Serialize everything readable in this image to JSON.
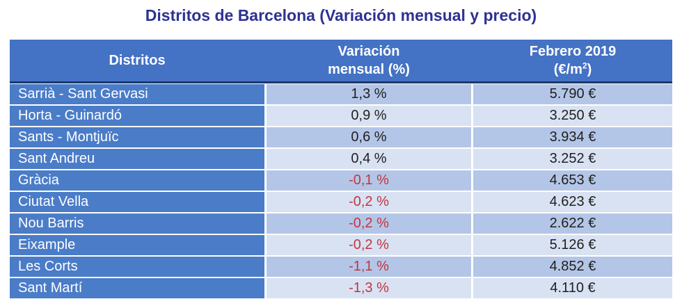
{
  "title": "Distritos de Barcelona (Variación mensual y precio)",
  "table": {
    "headers": {
      "district": "Distritos",
      "variation_line1": "Variación",
      "variation_line2": "mensual (%)",
      "price_line1": "Febrero 2019",
      "price_paren_open": "(€/m",
      "price_sup": "2",
      "price_paren_close": ")"
    },
    "rows": [
      {
        "district": "Sarrià - Sant Gervasi",
        "variation": "1,3 %",
        "price": "5.790 €",
        "negative": false
      },
      {
        "district": "Horta - Guinardó",
        "variation": "0,9 %",
        "price": "3.250 €",
        "negative": false
      },
      {
        "district": "Sants - Montjuïc",
        "variation": "0,6 %",
        "price": "3.934 €",
        "negative": false
      },
      {
        "district": "Sant Andreu",
        "variation": "0,4 %",
        "price": "3.252 €",
        "negative": false
      },
      {
        "district": "Gràcia",
        "variation": "-0,1 %",
        "price": "4.653 €",
        "negative": true
      },
      {
        "district": "Ciutat Vella",
        "variation": "-0,2 %",
        "price": "4.623 €",
        "negative": true
      },
      {
        "district": "Nou Barris",
        "variation": "-0,2 %",
        "price": "2.622 €",
        "negative": true
      },
      {
        "district": "Eixample",
        "variation": "-0,2 %",
        "price": "5.126 €",
        "negative": true
      },
      {
        "district": "Les Corts",
        "variation": "-1,1 %",
        "price": "4.852 €",
        "negative": true
      },
      {
        "district": "Sant Martí",
        "variation": "-1,3 %",
        "price": "4.110 €",
        "negative": true
      }
    ]
  },
  "chart_data": {
    "type": "table",
    "title": "Distritos de Barcelona (Variación mensual y precio)",
    "columns": [
      "Distritos",
      "Variación mensual (%)",
      "Febrero 2019 (€/m2)"
    ],
    "rows": [
      [
        "Sarrià - Sant Gervasi",
        1.3,
        5790
      ],
      [
        "Horta - Guinardó",
        0.9,
        3250
      ],
      [
        "Sants - Montjuïc",
        0.6,
        3934
      ],
      [
        "Sant Andreu",
        0.4,
        3252
      ],
      [
        "Gràcia",
        -0.1,
        4653
      ],
      [
        "Ciutat Vella",
        -0.2,
        4623
      ],
      [
        "Nou Barris",
        -0.2,
        2622
      ],
      [
        "Eixample",
        -0.2,
        5126
      ],
      [
        "Les Corts",
        -1.1,
        4852
      ],
      [
        "Sant Martí",
        -1.3,
        4110
      ]
    ]
  },
  "colors": {
    "title_navy": "#2E3192",
    "header_blue": "#4472C4",
    "district_blue": "#4A7CC8",
    "band_dark": "#B4C6E7",
    "band_light": "#D9E2F2",
    "divider_navy": "#1F3864",
    "negative_red": "#C23540",
    "text_dark": "#1F1F1F",
    "text_white": "#FFFFFF"
  }
}
